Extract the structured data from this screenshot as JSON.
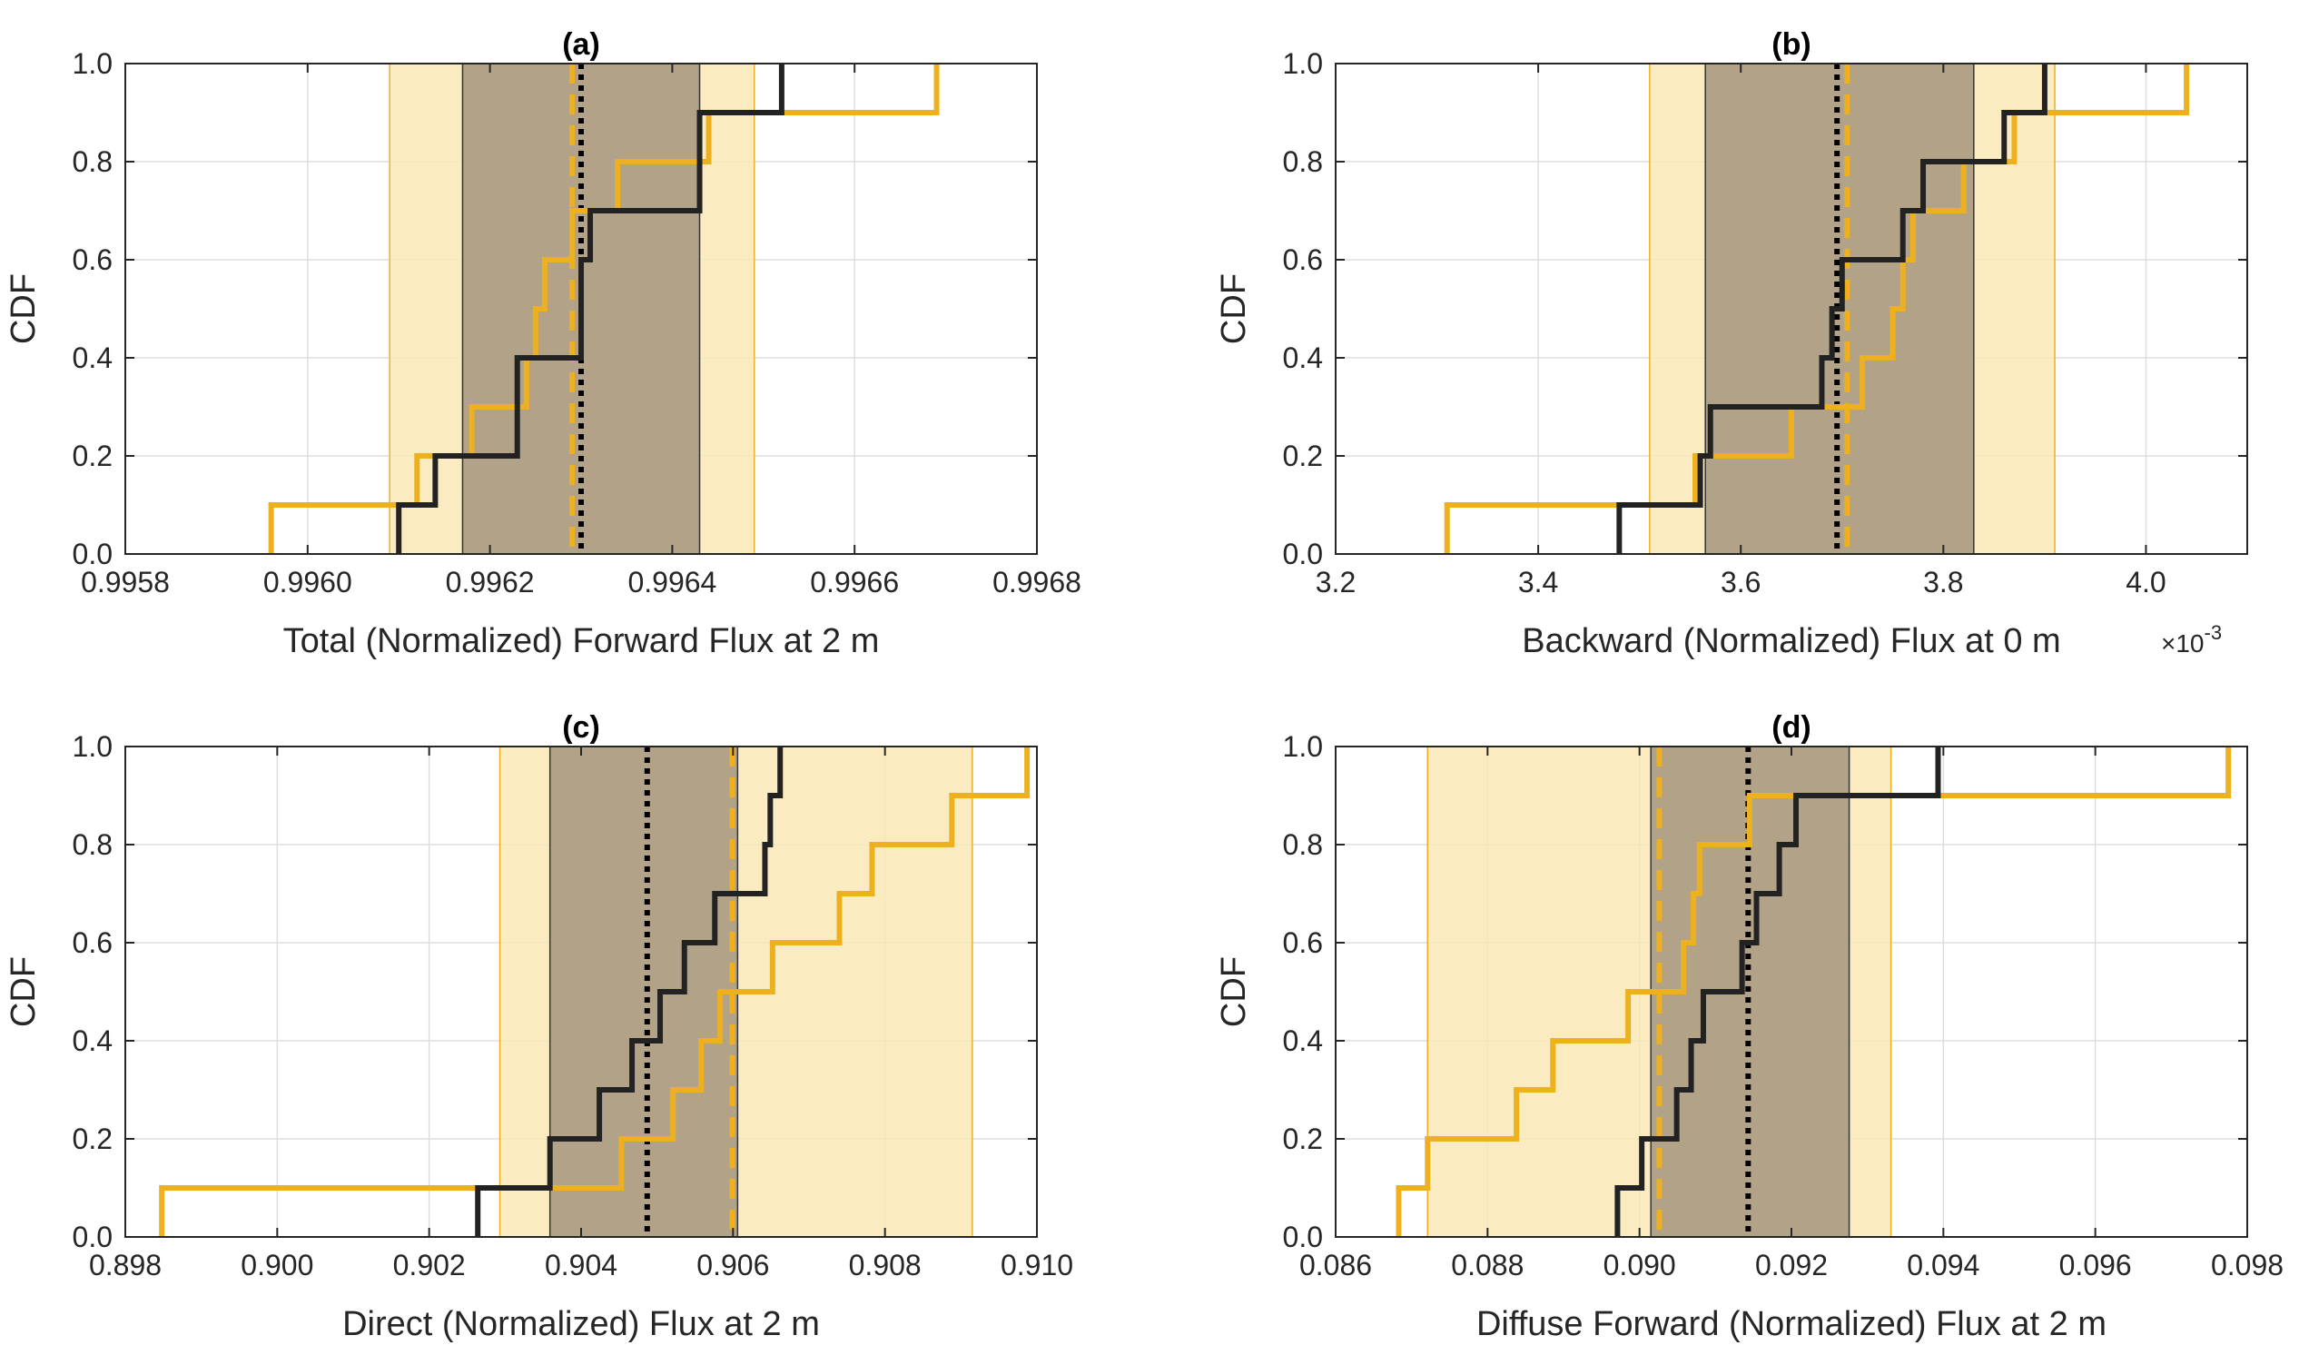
{
  "colors": {
    "gold": "#EDB120",
    "gold_band": "#F9E7B6",
    "gray_band": "#AA9B82",
    "black": "#222222",
    "axis": "#262626",
    "grid": "#DEDEDE"
  },
  "chart_data": [
    {
      "id": "a",
      "type": "line",
      "title": "(a)",
      "xlabel": "Total (Normalized) Forward Flux at 2 m",
      "ylabel": "CDF",
      "xlim": [
        0.9958,
        0.9968
      ],
      "ylim": [
        0,
        1
      ],
      "xticks": [
        0.9958,
        0.996,
        0.9962,
        0.9964,
        0.9966,
        0.9968
      ],
      "xtick_labels": [
        "0.9958",
        "0.9960",
        "0.9962",
        "0.9964",
        "0.9966",
        "0.9968"
      ],
      "yticks": [
        0,
        0.2,
        0.4,
        0.6,
        0.8,
        1
      ],
      "ytick_labels": [
        "0.0",
        "0.2",
        "0.4",
        "0.6",
        "0.8",
        "1.0"
      ],
      "gold_band": [
        0.99609,
        0.99649
      ],
      "gray_band": [
        0.99617,
        0.99643
      ],
      "gold_mean": 0.99629,
      "black_mean": 0.9963,
      "series": [
        {
          "name": "gold",
          "x": [
            0.99596,
            0.99612,
            0.99618,
            0.99624,
            0.99625,
            0.99626,
            0.99629,
            0.99634,
            0.99644,
            0.99669
          ]
        },
        {
          "name": "black",
          "x": [
            0.9961,
            0.99614,
            0.99623,
            0.99623,
            0.9963,
            0.9963,
            0.99631,
            0.99643,
            0.99643,
            0.99652
          ]
        }
      ]
    },
    {
      "id": "b",
      "type": "line",
      "title": "(b)",
      "xlabel": "Backward (Normalized) Flux at 0 m",
      "ylabel": "CDF",
      "multiplier": "×10",
      "multiplier_exp": "-3",
      "xlim": [
        3.2,
        4.1
      ],
      "ylim": [
        0,
        1
      ],
      "xticks": [
        3.2,
        3.4,
        3.6,
        3.8,
        4.0
      ],
      "xtick_labels": [
        "3.2",
        "3.4",
        "3.6",
        "3.8",
        "4.0"
      ],
      "yticks": [
        0,
        0.2,
        0.4,
        0.6,
        0.8,
        1
      ],
      "ytick_labels": [
        "0.0",
        "0.2",
        "0.4",
        "0.6",
        "0.8",
        "1.0"
      ],
      "gold_band": [
        3.51,
        3.91
      ],
      "gray_band": [
        3.565,
        3.83
      ],
      "gold_mean": 3.705,
      "black_mean": 3.695,
      "series": [
        {
          "name": "gold",
          "x": [
            3.31,
            3.555,
            3.65,
            3.72,
            3.75,
            3.76,
            3.77,
            3.82,
            3.87,
            4.04
          ]
        },
        {
          "name": "black",
          "x": [
            3.48,
            3.56,
            3.57,
            3.68,
            3.69,
            3.7,
            3.76,
            3.78,
            3.86,
            3.9
          ]
        }
      ]
    },
    {
      "id": "c",
      "type": "line",
      "title": "(c)",
      "xlabel": "Direct (Normalized) Flux at 2 m",
      "ylabel": "CDF",
      "xlim": [
        0.898,
        0.91
      ],
      "ylim": [
        0,
        1
      ],
      "xticks": [
        0.898,
        0.9,
        0.902,
        0.904,
        0.906,
        0.908,
        0.91
      ],
      "xtick_labels": [
        "0.898",
        "0.900",
        "0.902",
        "0.904",
        "0.906",
        "0.908",
        "0.910"
      ],
      "yticks": [
        0,
        0.2,
        0.4,
        0.6,
        0.8,
        1
      ],
      "ytick_labels": [
        "0.0",
        "0.2",
        "0.4",
        "0.6",
        "0.8",
        "1.0"
      ],
      "gold_band": [
        0.90293,
        0.90915
      ],
      "gray_band": [
        0.90359,
        0.90606
      ],
      "gold_mean": 0.90599,
      "black_mean": 0.90487,
      "series": [
        {
          "name": "gold",
          "x": [
            0.89848,
            0.90453,
            0.90521,
            0.90558,
            0.90583,
            0.90652,
            0.9074,
            0.90783,
            0.90888,
            0.90987
          ]
        },
        {
          "name": "black",
          "x": [
            0.90264,
            0.90359,
            0.90424,
            0.90467,
            0.90504,
            0.90536,
            0.90576,
            0.90642,
            0.90649,
            0.90662
          ]
        }
      ]
    },
    {
      "id": "d",
      "type": "line",
      "title": "(d)",
      "xlabel": "Diffuse Forward (Normalized) Flux at 2 m",
      "ylabel": "CDF",
      "xlim": [
        0.086,
        0.098
      ],
      "ylim": [
        0,
        1
      ],
      "xticks": [
        0.086,
        0.088,
        0.09,
        0.092,
        0.094,
        0.096,
        0.098
      ],
      "xtick_labels": [
        "0.086",
        "0.088",
        "0.090",
        "0.092",
        "0.094",
        "0.096",
        "0.098"
      ],
      "yticks": [
        0,
        0.2,
        0.4,
        0.6,
        0.8,
        1
      ],
      "ytick_labels": [
        "0.0",
        "0.2",
        "0.4",
        "0.6",
        "0.8",
        "1.0"
      ],
      "gold_band": [
        0.08721,
        0.09331
      ],
      "gray_band": [
        0.09015,
        0.09276
      ],
      "gold_mean": 0.09026,
      "black_mean": 0.09143,
      "series": [
        {
          "name": "gold",
          "x": [
            0.08683,
            0.08721,
            0.08838,
            0.08886,
            0.08985,
            0.09058,
            0.09071,
            0.09079,
            0.09145,
            0.09775
          ]
        },
        {
          "name": "black",
          "x": [
            0.08971,
            0.09003,
            0.09049,
            0.09068,
            0.09084,
            0.09135,
            0.09154,
            0.09184,
            0.09206,
            0.09393
          ]
        }
      ]
    }
  ]
}
